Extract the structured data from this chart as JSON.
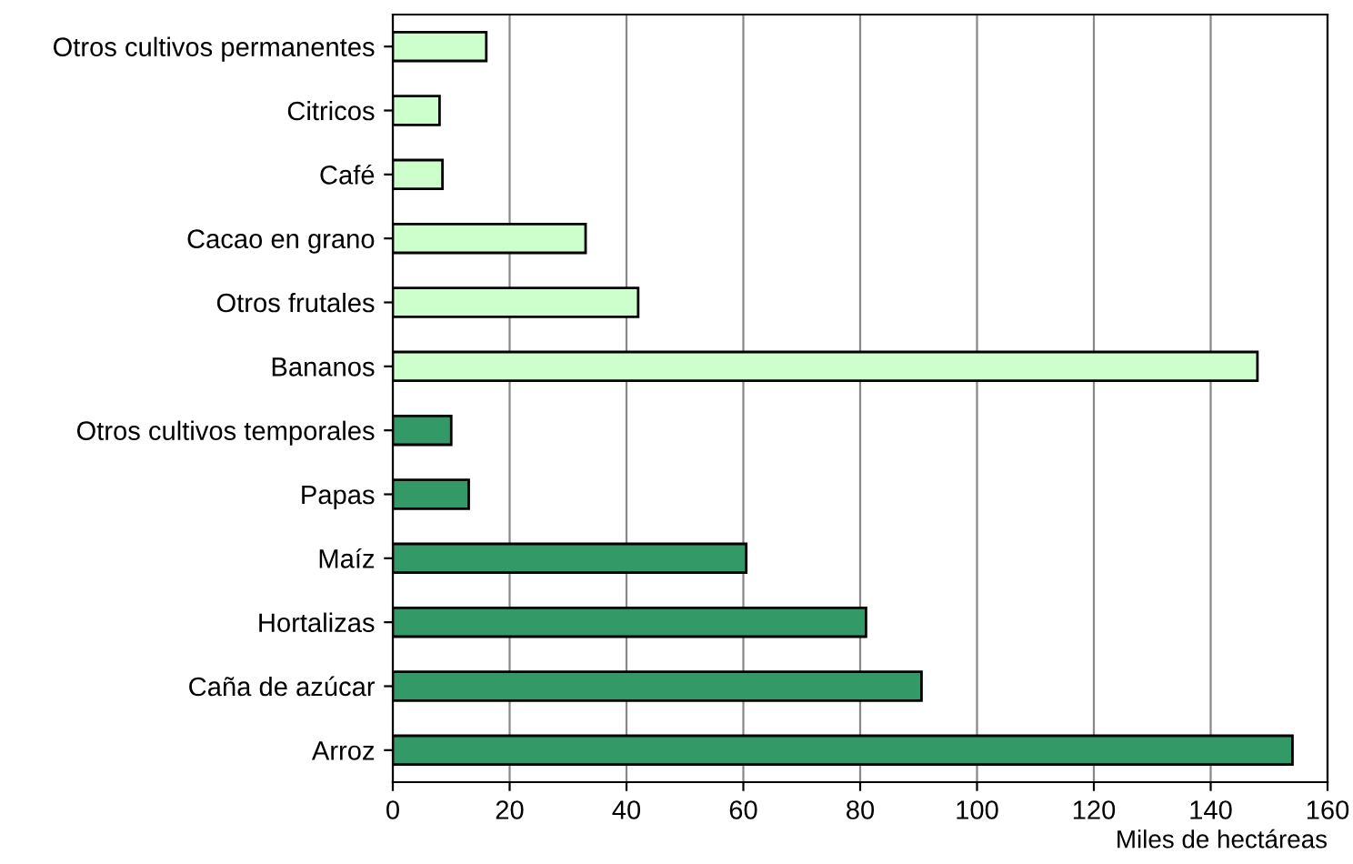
{
  "chart_data": {
    "type": "bar",
    "orientation": "horizontal",
    "xlabel": "Miles de hectáreas",
    "categories": [
      "Otros cultivos permanentes",
      "Citricos",
      "Café",
      "Cacao en grano",
      "Otros frutales",
      "Bananos",
      "Otros cultivos temporales",
      "Papas",
      "Maíz",
      "Hortalizas",
      "Caña de azúcar",
      "Arroz"
    ],
    "values": [
      16,
      8,
      8.5,
      33,
      42,
      148,
      10,
      13,
      60.5,
      81,
      90.5,
      154
    ],
    "colors": [
      "#ccffcc",
      "#ccffcc",
      "#ccffcc",
      "#ccffcc",
      "#ccffcc",
      "#ccffcc",
      "#339966",
      "#339966",
      "#339966",
      "#339966",
      "#339966",
      "#339966"
    ],
    "xlim": [
      0,
      160
    ],
    "xticks": [
      0,
      20,
      40,
      60,
      80,
      100,
      120,
      140,
      160
    ],
    "grid": "x"
  }
}
